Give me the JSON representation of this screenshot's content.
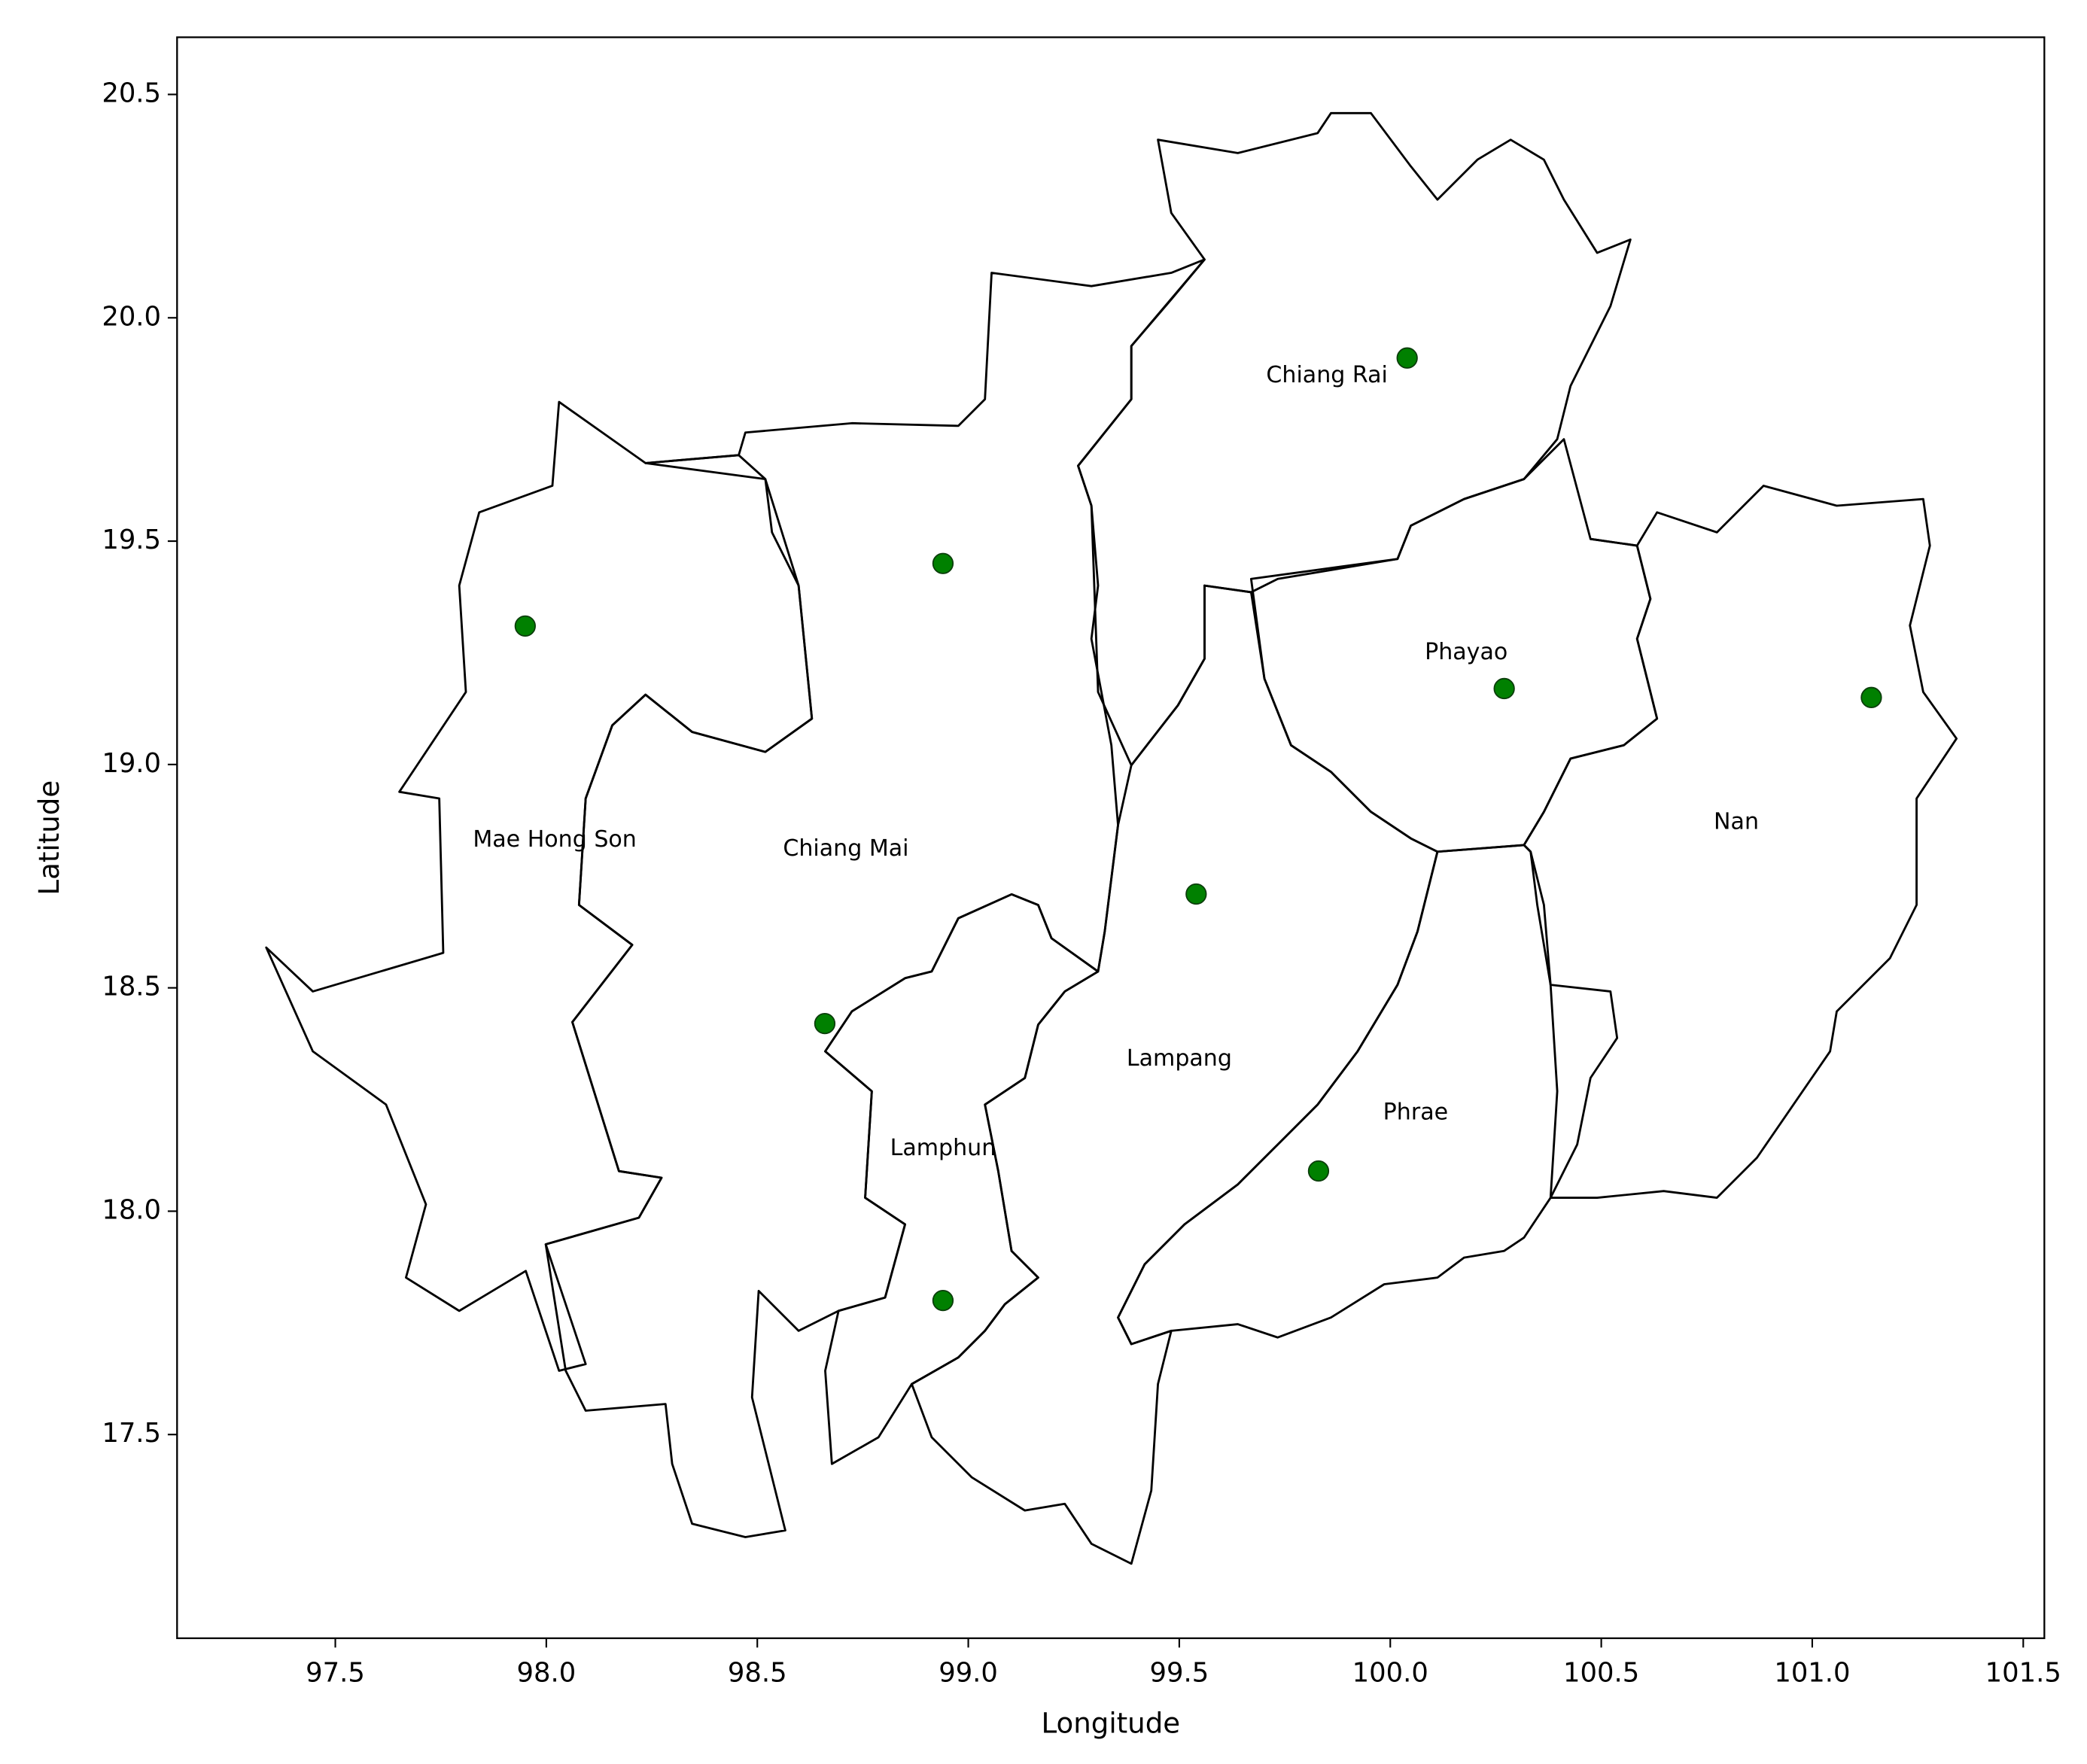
{
  "chart_data": {
    "type": "scatter",
    "x_label": "Longitude",
    "y_label": "Latitude",
    "xlim": [
      97.125,
      101.55
    ],
    "ylim": [
      17.044,
      20.628
    ],
    "xticks": [
      97.5,
      {
        "value": 98.0,
        "label": "98.0"
      },
      98.5,
      {
        "value": 99.0,
        "label": "99.0"
      },
      99.5,
      {
        "value": 100.0,
        "label": "100.0"
      },
      100.5,
      {
        "value": 101.0,
        "label": "101.0"
      },
      101.5
    ],
    "yticks": [
      17.5,
      {
        "value": 18.0,
        "label": "18.0"
      },
      18.5,
      {
        "value": 19.0,
        "label": "19.0"
      },
      19.5,
      {
        "value": 20.0,
        "label": "20.0"
      },
      20.5
    ],
    "grid": false,
    "color": "#008000",
    "x": [
      97.95,
      98.94,
      100.04,
      100.27,
      101.14,
      99.54,
      98.66,
      99.83,
      98.94
    ],
    "y": [
      19.31,
      19.45,
      19.91,
      19.17,
      19.15,
      18.71,
      18.42,
      18.09,
      17.8
    ],
    "labels": [
      {
        "text": "Mae Hong Son",
        "x": 98.02,
        "y": 18.83
      },
      {
        "text": "Chiang Mai",
        "x": 98.71,
        "y": 18.81
      },
      {
        "text": "Chiang Rai",
        "x": 99.85,
        "y": 19.87
      },
      {
        "text": "Phayao",
        "x": 100.18,
        "y": 19.25
      },
      {
        "text": "Nan",
        "x": 100.82,
        "y": 18.87
      },
      {
        "text": "Lampang",
        "x": 99.5,
        "y": 18.34
      },
      {
        "text": "Lamphun",
        "x": 98.94,
        "y": 18.14
      },
      {
        "text": "Phrae",
        "x": 100.06,
        "y": 18.22
      }
    ]
  }
}
